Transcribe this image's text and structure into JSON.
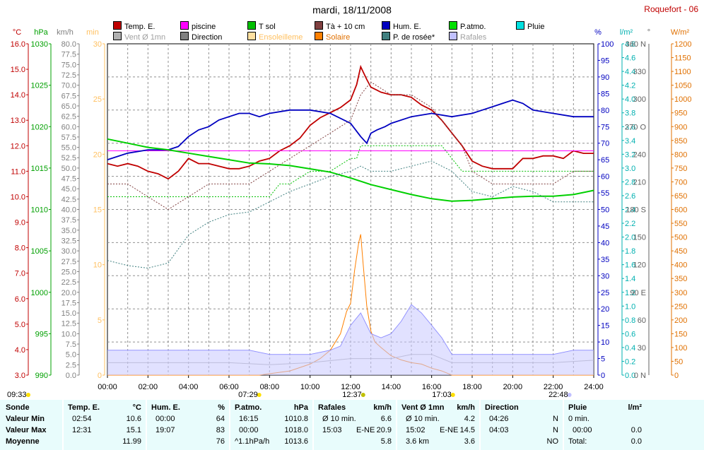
{
  "title": "mardi, 18/11/2008",
  "station": "Roquefort - 06",
  "legend": [
    {
      "label": "Temp. E.",
      "color": "#c00000",
      "dim": false
    },
    {
      "label": "piscine",
      "color": "#ff00ff",
      "dim": false
    },
    {
      "label": "T sol",
      "color": "#00c000",
      "dim": false
    },
    {
      "label": "Tà + 10 cm",
      "color": "#804040",
      "dim": false
    },
    {
      "label": "Hum. E.",
      "color": "#0000c0",
      "dim": false
    },
    {
      "label": "P.atmo.",
      "color": "#00e000",
      "dim": false
    },
    {
      "label": "Pluie",
      "color": "#00e0e0",
      "dim": false
    },
    {
      "label": "Vent Ø 1mn",
      "color": "#b0b0b0",
      "dim": true
    },
    {
      "label": "Direction",
      "color": "#808080",
      "dim": false
    },
    {
      "label": "Ensoleilleme",
      "color": "#ffe0a0",
      "dim": true
    },
    {
      "label": "Solaire",
      "color": "#ff8000",
      "dim": false
    },
    {
      "label": "P. de rosée*",
      "color": "#408080",
      "dim": false
    },
    {
      "label": "Rafales",
      "color": "#c0c0ff",
      "dim": true
    }
  ],
  "axis_units": {
    "temp": "°C",
    "hpa": "hPa",
    "kmh": "km/h",
    "min": "min",
    "pct": "%",
    "rain": "l/m²",
    "deg": "°",
    "wm2": "W/m²"
  },
  "axes": {
    "temp": {
      "min": 3,
      "max": 16,
      "step": 1,
      "decimals": 1,
      "color": "#c00000"
    },
    "hpa": {
      "min": 990,
      "max": 1030,
      "step": 5,
      "decimals": 0,
      "color": "#00a000"
    },
    "kmh": {
      "min": 0,
      "max": 80,
      "step": 2.5,
      "decimals": 1,
      "color": "#808080"
    },
    "min": {
      "min": 0,
      "max": 30,
      "step": 5,
      "decimals": 0,
      "color": "#ffc060"
    },
    "pct": {
      "min": 0,
      "max": 100,
      "step": 5,
      "decimals": 0,
      "color": "#0000c0"
    },
    "rain": {
      "min": 0,
      "max": 4.8,
      "step": 0.2,
      "decimals": 1,
      "color": "#00b0b0"
    },
    "deg": {
      "ticks": [
        "0 N",
        "30",
        "60",
        "90 E",
        "120",
        "150",
        "180 S",
        "210",
        "240",
        "270 O",
        "300",
        "330",
        "360 N"
      ],
      "color": "#606060"
    },
    "wm2": {
      "min": 0,
      "max": 1200,
      "step": 50,
      "decimals": 0,
      "color": "#e07000"
    }
  },
  "x_ticks": [
    "00:00",
    "02:00",
    "04:00",
    "06:00",
    "08:00",
    "10:00",
    "12:00",
    "14:00",
    "16:00",
    "18:00",
    "20:00",
    "22:00",
    "24:00"
  ],
  "time_markers": [
    {
      "label": "09:33",
      "hour": -1.2,
      "color": "#ffe000"
    },
    {
      "label": "07:29",
      "hour": 7.49,
      "color": "#ffe000"
    },
    {
      "label": "12:37",
      "hour": 12.62,
      "color": "#c0c000"
    },
    {
      "label": "17:03",
      "hour": 17.05,
      "color": "#ffe000"
    },
    {
      "label": "22:48",
      "hour": 22.8,
      "color": "#c0c0ff"
    }
  ],
  "chart_data": {
    "type": "line",
    "x_unit": "hour",
    "xlim": [
      0,
      24
    ],
    "series": [
      {
        "name": "Temp. E.",
        "axis": "temp",
        "color": "#c00000",
        "x": [
          0,
          0.5,
          1,
          1.5,
          2,
          2.5,
          3,
          3.5,
          4,
          4.5,
          5,
          5.5,
          6,
          6.5,
          7,
          7.5,
          8,
          8.5,
          9,
          9.5,
          10,
          10.5,
          11,
          11.5,
          12,
          12.3,
          12.5,
          12.8,
          13,
          13.5,
          14,
          14.5,
          15,
          15.5,
          16,
          16.5,
          17,
          17.5,
          18,
          18.5,
          19,
          19.5,
          20,
          20.5,
          21,
          21.5,
          22,
          22.5,
          23,
          23.5,
          24
        ],
        "y": [
          11.3,
          11.2,
          11.3,
          11.2,
          11.0,
          10.9,
          10.7,
          11.0,
          11.5,
          11.3,
          11.3,
          11.2,
          11.1,
          11.1,
          11.2,
          11.4,
          11.5,
          11.8,
          12.0,
          12.3,
          12.8,
          13.1,
          13.3,
          13.5,
          13.8,
          14.4,
          15.1,
          14.6,
          14.3,
          14.1,
          14.0,
          14.0,
          13.9,
          13.6,
          13.4,
          13.0,
          12.5,
          12.0,
          11.4,
          11.2,
          11.1,
          11.1,
          11.1,
          11.5,
          11.5,
          11.6,
          11.6,
          11.5,
          11.8,
          11.7,
          11.7
        ]
      },
      {
        "name": "piscine",
        "axis": "temp",
        "color": "#ff00ff",
        "x": [
          0,
          24
        ],
        "y": [
          11.8,
          11.8
        ]
      },
      {
        "name": "Hum. E.",
        "axis": "pct",
        "color": "#0000c0",
        "x": [
          0,
          1,
          2,
          3,
          3.5,
          4,
          4.5,
          5,
          5.5,
          6,
          6.5,
          7,
          7.5,
          8,
          9,
          10,
          11,
          12,
          12.5,
          12.8,
          13,
          13.3,
          13.7,
          14,
          15,
          16,
          17,
          18,
          18.5,
          19,
          19.5,
          20,
          20.5,
          21,
          22,
          23,
          24
        ],
        "y": [
          65,
          67,
          68,
          68,
          69,
          72,
          74,
          75,
          77,
          78,
          79,
          79,
          78,
          79,
          80,
          80,
          79,
          76,
          72,
          70,
          73,
          74,
          75,
          76,
          78,
          79,
          78,
          79,
          80,
          81,
          82,
          83,
          82,
          80,
          79,
          78,
          78
        ]
      },
      {
        "name": "P.atmo.",
        "axis": "hpa",
        "color": "#00d000",
        "x": [
          0,
          1,
          2,
          3,
          4,
          5,
          6,
          7,
          8,
          9,
          10,
          11,
          12,
          13,
          14,
          15,
          16,
          17,
          18,
          19,
          20,
          21,
          22,
          23,
          24
        ],
        "y": [
          1018.5,
          1018.0,
          1017.5,
          1017.2,
          1016.8,
          1016.4,
          1016.0,
          1015.6,
          1015.5,
          1015.3,
          1014.9,
          1014.5,
          1013.8,
          1013.0,
          1012.4,
          1011.8,
          1011.3,
          1011.0,
          1011.1,
          1011.3,
          1011.5,
          1011.6,
          1011.6,
          1011.8,
          1012.3
        ]
      },
      {
        "name": "T sol",
        "axis": "temp",
        "color": "#00c000",
        "dashed": true,
        "x": [
          0,
          1,
          2,
          3,
          4,
          5,
          6,
          7,
          8,
          8.5,
          9,
          10,
          11,
          12,
          12.3,
          12.5,
          13,
          14,
          15,
          16,
          16.5,
          17,
          17.5,
          18,
          19,
          20,
          21,
          22,
          23,
          23.5,
          24
        ],
        "y": [
          10,
          10,
          10,
          10,
          10,
          10,
          10,
          10,
          10,
          10.5,
          10.5,
          11,
          11,
          11.5,
          11.5,
          12,
          12,
          12,
          12,
          12,
          12,
          11.5,
          11,
          11,
          11,
          11,
          11,
          11,
          11,
          11,
          11
        ]
      },
      {
        "name": "Tà + 10 cm",
        "axis": "temp",
        "color": "#804040",
        "dashed": true,
        "x": [
          0,
          1,
          2,
          3,
          4,
          5,
          6,
          7,
          8,
          9,
          10,
          11,
          12,
          12.5,
          13,
          14,
          15,
          16,
          16.5,
          17,
          17.5,
          18,
          19,
          20,
          21,
          22,
          23,
          24
        ],
        "y": [
          10.5,
          10.5,
          10,
          9.5,
          10,
          10.5,
          10.5,
          10.5,
          11,
          11.5,
          12,
          12.5,
          13,
          14,
          14.5,
          14,
          14,
          13.5,
          13,
          12.5,
          12,
          11,
          10.5,
          10.5,
          10.5,
          10.5,
          11,
          11
        ]
      },
      {
        "name": "P. de rosée*",
        "axis": "temp",
        "color": "#408080",
        "dashed": true,
        "x": [
          0,
          1,
          2,
          3,
          4,
          5,
          6,
          7,
          8,
          9,
          10,
          11,
          12,
          12.5,
          13,
          14,
          15,
          16,
          17,
          18,
          19,
          20,
          21,
          22,
          23,
          24
        ],
        "y": [
          7.5,
          7.3,
          7.2,
          7.4,
          8.5,
          9.0,
          9.3,
          9.4,
          9.8,
          10.2,
          10.5,
          10.8,
          11.0,
          11.2,
          11.0,
          11.0,
          11.2,
          11.4,
          11.0,
          10.2,
          10.0,
          10.4,
          10.2,
          9.8,
          9.8,
          9.8
        ]
      },
      {
        "name": "Solaire",
        "axis": "wm2",
        "color": "#ff8000",
        "x": [
          0,
          7.5,
          8,
          9,
          10,
          10.5,
          11,
          11.5,
          11.8,
          12,
          12.2,
          12.4,
          12.5,
          12.6,
          12.8,
          13,
          13.2,
          13.5,
          14,
          14.5,
          15,
          15.5,
          16,
          16.5,
          17,
          24
        ],
        "y": [
          0,
          0,
          5,
          15,
          40,
          60,
          90,
          150,
          230,
          260,
          380,
          480,
          510,
          420,
          250,
          160,
          120,
          100,
          70,
          55,
          45,
          40,
          25,
          15,
          0,
          0
        ]
      },
      {
        "name": "Rafales",
        "axis": "kmh",
        "color": "#8080ff",
        "x": [
          0,
          1,
          2,
          3,
          4,
          5,
          6,
          7,
          8,
          9,
          10,
          11,
          11.5,
          12,
          12.5,
          13,
          13.5,
          14,
          14.5,
          15,
          15.5,
          16,
          16.5,
          17,
          18,
          19,
          20,
          21,
          22,
          23,
          24
        ],
        "y": [
          6,
          6,
          6,
          6,
          6,
          6,
          6,
          6,
          5,
          5,
          5,
          6,
          7,
          12,
          15,
          10,
          9,
          10,
          13,
          17,
          15,
          12,
          9,
          5,
          5,
          5,
          5,
          5,
          5,
          6,
          6
        ]
      },
      {
        "name": "Vent Ø 1mn",
        "axis": "kmh",
        "color": "#b0b0b0",
        "x": [
          0,
          2,
          4,
          6,
          8,
          10,
          12,
          13,
          14,
          15,
          16,
          17,
          18,
          20,
          22,
          24
        ],
        "y": [
          3,
          3,
          3,
          3,
          2.5,
          3,
          4,
          4,
          4,
          5,
          5,
          3,
          3,
          3,
          3,
          3.6
        ]
      }
    ]
  },
  "summary": {
    "sonde": {
      "header": "Sonde",
      "rows": [
        "Valeur Min",
        "Valeur Max",
        "Moyenne"
      ]
    },
    "temp": {
      "header": "Temp. E.",
      "unit": "°C",
      "rows": [
        [
          "02:54",
          "10.6"
        ],
        [
          "12:31",
          "15.1"
        ],
        [
          "",
          "11.99"
        ]
      ]
    },
    "hum": {
      "header": "Hum. E.",
      "unit": "%",
      "rows": [
        [
          "00:00",
          "64"
        ],
        [
          "19:07",
          "83"
        ],
        [
          "",
          "76"
        ]
      ]
    },
    "patmo": {
      "header": "P.atmo.",
      "unit": "hPa",
      "rows": [
        [
          "16:15",
          "1010.8"
        ],
        [
          "00:00",
          "1018.0"
        ],
        [
          "^1.1hPa/h",
          "1013.6"
        ]
      ]
    },
    "rafales": {
      "header": "Rafales",
      "unit": "km/h",
      "rows": [
        [
          "Ø 10 min.",
          "",
          "6.6"
        ],
        [
          "15:03",
          "E-NE",
          "20.9"
        ],
        [
          "",
          "",
          "5.8"
        ]
      ]
    },
    "vent": {
      "header": "Vent Ø 1mn",
      "unit": "km/h",
      "rows": [
        [
          "Ø 10 min.",
          "",
          "4.2"
        ],
        [
          "15:02",
          "E-NE",
          "14.5"
        ],
        [
          "3.6 km",
          "",
          "3.6"
        ]
      ]
    },
    "direction": {
      "header": "Direction",
      "unit": "",
      "rows": [
        [
          "04:26",
          "N"
        ],
        [
          "04:03",
          "N"
        ],
        [
          "",
          "NO"
        ]
      ]
    },
    "pluie": {
      "header": "Pluie",
      "unit": "l/m²",
      "rows": [
        [
          "0 min.",
          ""
        ],
        [
          "00:00",
          "0.0"
        ],
        [
          "Total:",
          "0.0"
        ]
      ]
    }
  }
}
